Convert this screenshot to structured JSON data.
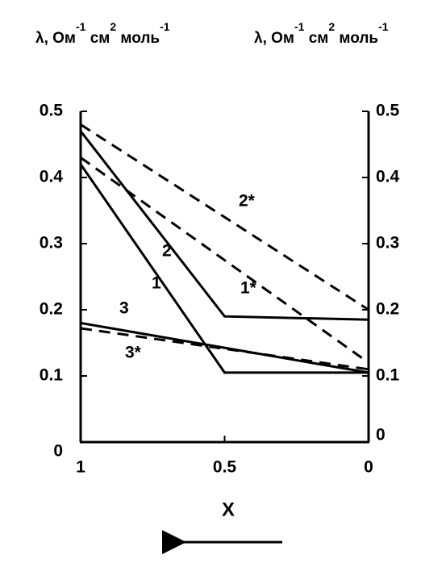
{
  "chart_data": {
    "type": "line",
    "y_label": [
      "λ, Ом",
      "-1",
      " см",
      "2",
      " моль",
      "-1"
    ],
    "y2_label": [
      "λ, Ом",
      "-1",
      " см",
      "2",
      " моль",
      "-1"
    ],
    "x_label": "X",
    "xlim": [
      1,
      0
    ],
    "xticks": [
      1,
      0.5,
      0
    ],
    "ylim": [
      0,
      0.5
    ],
    "yticks": [
      0,
      0.1,
      0.2,
      0.3,
      0.4,
      0.5
    ],
    "y2lim": [
      0,
      0.5
    ],
    "y2ticks": [
      0,
      0.1,
      0.2,
      0.3,
      0.4,
      0.5
    ],
    "series": [
      {
        "name": "1",
        "color": "#000000",
        "style": "solid",
        "x": [
          1,
          0.5,
          0
        ],
        "values": [
          0.42,
          0.105,
          0.105
        ]
      },
      {
        "name": "2",
        "color": "#000000",
        "style": "solid",
        "x": [
          1,
          0.5,
          0
        ],
        "values": [
          0.47,
          0.19,
          0.185
        ]
      },
      {
        "name": "3",
        "color": "#000000",
        "style": "solid",
        "x": [
          1,
          0
        ],
        "values": [
          0.18,
          0.105
        ]
      },
      {
        "name": "1*",
        "color": "#000000",
        "style": "dashed",
        "x": [
          1,
          0
        ],
        "values": [
          0.43,
          0.12
        ]
      },
      {
        "name": "2*",
        "color": "#000000",
        "style": "dashed",
        "x": [
          1,
          0
        ],
        "values": [
          0.48,
          0.2
        ]
      },
      {
        "name": "3*",
        "color": "#000000",
        "style": "dashed",
        "x": [
          1,
          0
        ],
        "values": [
          0.172,
          0.11
        ]
      }
    ]
  }
}
